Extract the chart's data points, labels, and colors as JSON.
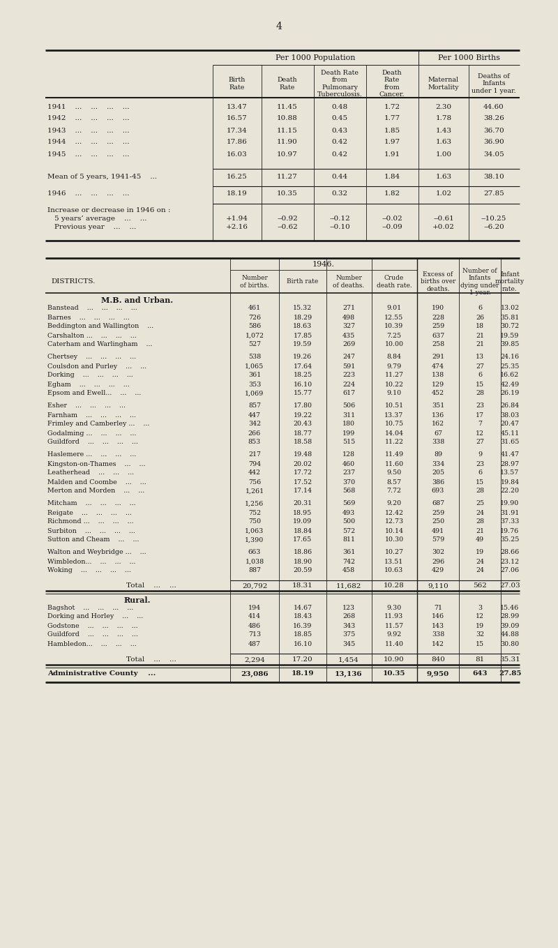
{
  "page_number": "4",
  "bg_color": "#e8e4d8",
  "text_color": "#1a1a1a",
  "table1": {
    "col_headers": [
      "Birth\nRate",
      "Death\nRate",
      "Death Rate\nfrom\nPulmonary\nTuberculosis.",
      "Death\nRate\nfrom\nCancer.",
      "Maternal\nMortality",
      "Deaths of\nInfants\nunder 1 year."
    ],
    "rows": [
      [
        "1941    ...    ...    ...    ...",
        "13.47",
        "11.45",
        "0.48",
        "1.72",
        "2.30",
        "44.60"
      ],
      [
        "1942    ...    ...    ...    ...",
        "16.57",
        "10.88",
        "0.45",
        "1.77",
        "1.78",
        "38.26"
      ],
      [
        "1943    ...    ...    ...    ...",
        "17.34",
        "11.15",
        "0.43",
        "1.85",
        "1.43",
        "36.70"
      ],
      [
        "1944    ...    ...    ...    ...",
        "17.86",
        "11.90",
        "0.42",
        "1.97",
        "1.63",
        "36.90"
      ],
      [
        "1945    ...    ...    ...    ...",
        "16.03",
        "10.97",
        "0.42",
        "1.91",
        "1.00",
        "34.05"
      ]
    ],
    "mean_row": [
      "Mean of 5 years, 1941-45    ...",
      "16.25",
      "11.27",
      "0.44",
      "1.84",
      "1.63",
      "38.10"
    ],
    "year1946_row": [
      "1946    ...    ...    ...    ...",
      "18.19",
      "10.35",
      "0.32",
      "1.82",
      "1.02",
      "27.85"
    ],
    "increase_label": "Increase or decrease in 1946 on :",
    "increase_rows": [
      [
        "5 years’ average    ...    ...",
        "+1.94",
        "‒0.92",
        "‒0.12",
        "‒0.02",
        "‒0.61",
        "‒10.25"
      ],
      [
        "Previous year    ...    ...",
        "+2.16",
        "‒0.62",
        "‒0.10",
        "‒0.09",
        "+0.02",
        "‒6.20"
      ]
    ]
  },
  "table2": {
    "section1_header": "M.B. and Urban.",
    "section1": [
      [
        "Banstead    ...    ...    ...    ...",
        "461",
        "15.32",
        "271",
        "9.01",
        "190",
        "6",
        "13.02"
      ],
      [
        "Barnes    ...    ...    ...    ...",
        "726",
        "18.29",
        "498",
        "12.55",
        "228",
        "26",
        "35.81"
      ],
      [
        "Beddington and Wallington    ...",
        "586",
        "18.63",
        "327",
        "10.39",
        "259",
        "18",
        "30.72"
      ],
      [
        "Carshalton ...    ...    ...    ...",
        "1,072",
        "17.85",
        "435",
        "7.25",
        "637",
        "21",
        "19.59"
      ],
      [
        "Caterham and Warlingham    ...",
        "527",
        "19.59",
        "269",
        "10.00",
        "258",
        "21",
        "39.85"
      ],
      [
        "Chertsey    ...    ...    ...    ...",
        "538",
        "19.26",
        "247",
        "8.84",
        "291",
        "13",
        "24.16"
      ],
      [
        "Coulsdon and Purley    ...    ...",
        "1,065",
        "17.64",
        "591",
        "9.79",
        "474",
        "27",
        "25.35"
      ],
      [
        "Dorking    ...    ...    ...    ...",
        "361",
        "18.25",
        "223",
        "11.27",
        "138",
        "6",
        "16.62"
      ],
      [
        "Egham    ...    ...    ...    ...",
        "353",
        "16.10",
        "224",
        "10.22",
        "129",
        "15",
        "42.49"
      ],
      [
        "Epsom and Ewell...    ...    ...",
        "1,069",
        "15.77",
        "617",
        "9.10",
        "452",
        "28",
        "26.19"
      ],
      [
        "Esher    ...    ...    ...    ...",
        "857",
        "17.80",
        "506",
        "10.51",
        "351",
        "23",
        "26.84"
      ],
      [
        "Farnham    ...    ...    ...    ...",
        "447",
        "19.22",
        "311",
        "13.37",
        "136",
        "17",
        "38.03"
      ],
      [
        "Frimley and Camberley ...    ...",
        "342",
        "20.43",
        "180",
        "10.75",
        "162",
        "7",
        "20.47"
      ],
      [
        "Godalming ...    ...    ...    ...",
        "266",
        "18.77",
        "199",
        "14.04",
        "67",
        "12",
        "45.11"
      ],
      [
        "Guildford    ...    ...    ...    ...",
        "853",
        "18.58",
        "515",
        "11.22",
        "338",
        "27",
        "31.65"
      ],
      [
        "Haslemere ...    ...    ...    ...",
        "217",
        "19.48",
        "128",
        "11.49",
        "89",
        "9",
        "41.47"
      ],
      [
        "Kingston-on-Thames    ...    ...",
        "794",
        "20.02",
        "460",
        "11.60",
        "334",
        "23",
        "28.97"
      ],
      [
        "Leatherhead    ...    ...    ...",
        "442",
        "17.72",
        "237",
        "9.50",
        "205",
        "6",
        "13.57"
      ],
      [
        "Malden and Coombe    ...    ...",
        "756",
        "17.52",
        "370",
        "8.57",
        "386",
        "15",
        "19.84"
      ],
      [
        "Merton and Morden    ...    ...",
        "1,261",
        "17.14",
        "568",
        "7.72",
        "693",
        "28",
        "22.20"
      ],
      [
        "Mitcham    ...    ...    ...    ...",
        "1,256",
        "20.31",
        "569",
        "9.20",
        "687",
        "25",
        "19.90"
      ],
      [
        "Reigate    ...    ...    ...    ...",
        "752",
        "18.95",
        "493",
        "12.42",
        "259",
        "24",
        "31.91"
      ],
      [
        "Richmond ...    ...    ...    ...",
        "750",
        "19.09",
        "500",
        "12.73",
        "250",
        "28",
        "37.33"
      ],
      [
        "Surbiton    ...    ...    ...    ...",
        "1,063",
        "18.84",
        "572",
        "10.14",
        "491",
        "21",
        "19.76"
      ],
      [
        "Sutton and Cheam    ...    ...",
        "1,390",
        "17.65",
        "811",
        "10.30",
        "579",
        "49",
        "35.25"
      ],
      [
        "Walton and Weybridge ...    ...",
        "663",
        "18.86",
        "361",
        "10.27",
        "302",
        "19",
        "28.66"
      ],
      [
        "Wimbledon...    ...    ...    ...",
        "1,038",
        "18.90",
        "742",
        "13.51",
        "296",
        "24",
        "23.12"
      ],
      [
        "Woking    ...    ...    ...    ...",
        "887",
        "20.59",
        "458",
        "10.63",
        "429",
        "24",
        "27.06"
      ]
    ],
    "group_breaks": [
      5,
      10,
      15,
      20,
      25
    ],
    "section1_total": [
      "Total    ...    ...",
      "20,792",
      "18.31",
      "11,682",
      "10.28",
      "9,110",
      "562",
      "27.03"
    ],
    "section2_header": "Rural.",
    "section2": [
      [
        "Bagshot    ...    ...    ...    ...",
        "194",
        "14.67",
        "123",
        "9.30",
        "71",
        "3",
        "15.46"
      ],
      [
        "Dorking and Horley    ...    ...",
        "414",
        "18.43",
        "268",
        "11.93",
        "146",
        "12",
        "28.99"
      ],
      [
        "Godstone    ...    ...    ...    ...",
        "486",
        "16.39",
        "343",
        "11.57",
        "143",
        "19",
        "39.09"
      ],
      [
        "Guildford    ...    ...    ...    ...",
        "713",
        "18.85",
        "375",
        "9.92",
        "338",
        "32",
        "44.88"
      ],
      [
        "Hambledon...    ...    ...    ...",
        "487",
        "16.10",
        "345",
        "11.40",
        "142",
        "15",
        "30.80"
      ]
    ],
    "section2_total": [
      "Total    ...    ...",
      "2,294",
      "17.20",
      "1,454",
      "10.90",
      "840",
      "81",
      "35.31"
    ],
    "admin_county": [
      "Administrative County    ...",
      "23,086",
      "18.19",
      "13,136",
      "10.35",
      "9,950",
      "643",
      "27.85"
    ]
  }
}
